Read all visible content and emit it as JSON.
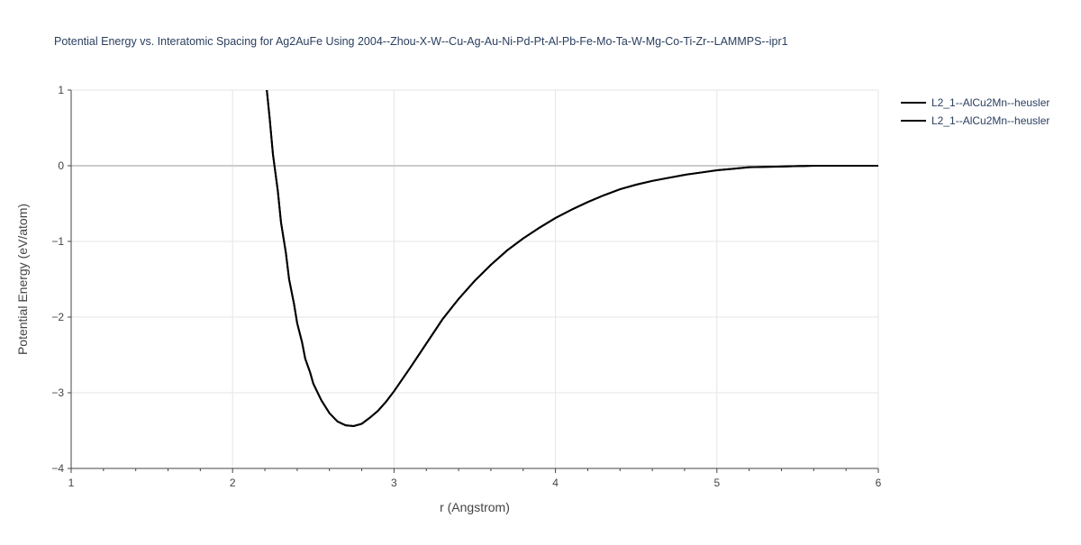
{
  "chart_data": {
    "type": "line",
    "title": "Potential Energy vs. Interatomic Spacing for Ag2AuFe Using 2004--Zhou-X-W--Cu-Ag-Au-Ni-Pd-Pt-Al-Pb-Fe-Mo-Ta-W-Mg-Co-Ti-Zr--LAMMPS--ipr1",
    "xlabel": "r (Angstrom)",
    "ylabel": "Potential Energy (eV/atom)",
    "xlim": [
      1,
      6
    ],
    "ylim": [
      -4,
      1
    ],
    "x_ticks": [
      1,
      2,
      3,
      4,
      5,
      6
    ],
    "x_tick_labels": [
      "1",
      "2",
      "3",
      "4",
      "5",
      "6"
    ],
    "y_ticks": [
      1,
      0,
      -1,
      -2,
      -3,
      -4
    ],
    "y_tick_labels": [
      "1",
      "0",
      "−1",
      "−2",
      "−3",
      "−4"
    ],
    "grid": true,
    "legend_position": "top-right",
    "colors": {
      "line": "#000000",
      "grid": "#e5e5e5",
      "zero_line": "#cccccc",
      "text": "#444444",
      "title": "#2a3f5f"
    },
    "series": [
      {
        "name": "L2_1--AlCu2Mn--heusler",
        "x": [
          2.2,
          2.23,
          2.25,
          2.28,
          2.3,
          2.33,
          2.35,
          2.38,
          2.4,
          2.43,
          2.45,
          2.48,
          2.5,
          2.55,
          2.6,
          2.65,
          2.7,
          2.75,
          2.8,
          2.85,
          2.9,
          2.95,
          3.0,
          3.1,
          3.2,
          3.3,
          3.4,
          3.5,
          3.6,
          3.7,
          3.8,
          3.9,
          4.0,
          4.1,
          4.2,
          4.3,
          4.4,
          4.5,
          4.6,
          4.7,
          4.8,
          4.9,
          5.0,
          5.1,
          5.2,
          5.4,
          5.6,
          5.8,
          6.0
        ],
        "y": [
          1.25,
          0.62,
          0.15,
          -0.33,
          -0.75,
          -1.15,
          -1.5,
          -1.82,
          -2.08,
          -2.33,
          -2.55,
          -2.73,
          -2.88,
          -3.1,
          -3.27,
          -3.38,
          -3.43,
          -3.44,
          -3.41,
          -3.33,
          -3.24,
          -3.12,
          -2.98,
          -2.67,
          -2.35,
          -2.03,
          -1.76,
          -1.52,
          -1.31,
          -1.12,
          -0.96,
          -0.82,
          -0.69,
          -0.58,
          -0.48,
          -0.39,
          -0.31,
          -0.25,
          -0.2,
          -0.16,
          -0.12,
          -0.09,
          -0.06,
          -0.04,
          -0.02,
          -0.01,
          0.0,
          0.0,
          0.0
        ]
      },
      {
        "name": "L2_1--AlCu2Mn--heusler",
        "x": [
          2.2,
          2.23,
          2.25,
          2.28,
          2.3,
          2.33,
          2.35,
          2.38,
          2.4,
          2.43,
          2.45,
          2.48,
          2.5,
          2.55,
          2.6,
          2.65,
          2.7,
          2.75,
          2.8,
          2.85,
          2.9,
          2.95,
          3.0,
          3.1,
          3.2,
          3.3,
          3.4,
          3.5,
          3.6,
          3.7,
          3.8,
          3.9,
          4.0,
          4.1,
          4.2,
          4.3,
          4.4,
          4.5,
          4.6,
          4.7,
          4.8,
          4.9,
          5.0,
          5.1,
          5.2,
          5.4,
          5.6,
          5.8,
          6.0
        ],
        "y": [
          1.25,
          0.62,
          0.15,
          -0.33,
          -0.75,
          -1.15,
          -1.5,
          -1.82,
          -2.08,
          -2.33,
          -2.55,
          -2.73,
          -2.88,
          -3.1,
          -3.27,
          -3.38,
          -3.43,
          -3.44,
          -3.41,
          -3.33,
          -3.24,
          -3.12,
          -2.98,
          -2.67,
          -2.35,
          -2.03,
          -1.76,
          -1.52,
          -1.31,
          -1.12,
          -0.96,
          -0.82,
          -0.69,
          -0.58,
          -0.48,
          -0.39,
          -0.31,
          -0.25,
          -0.2,
          -0.16,
          -0.12,
          -0.09,
          -0.06,
          -0.04,
          -0.02,
          -0.01,
          0.0,
          0.0,
          0.0
        ]
      }
    ]
  }
}
